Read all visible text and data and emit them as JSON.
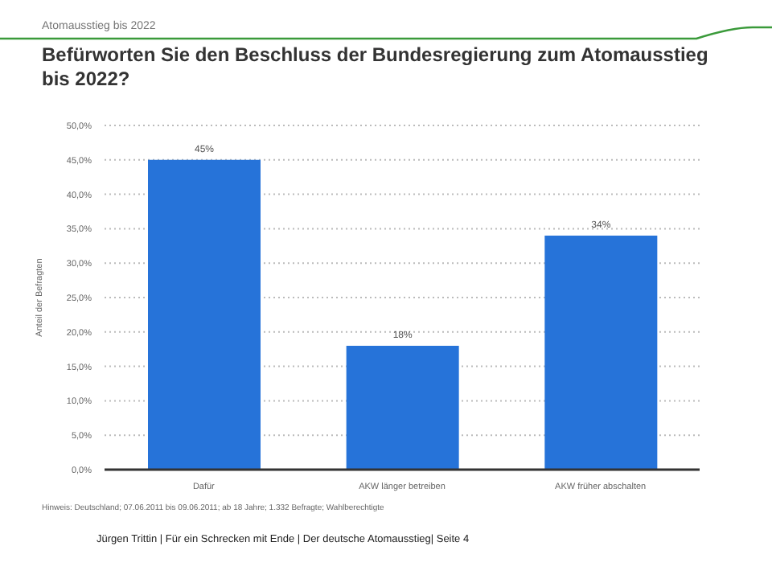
{
  "chart_data": {
    "type": "bar",
    "subtitle": "Atomausstieg bis 2022",
    "title": "Befürworten Sie den Beschluss der Bundesregierung zum Atomausstieg bis 2022?",
    "ylabel": "Anteil der Befragten",
    "categories": [
      "Dafür",
      "AKW länger betreiben",
      "AKW früher abschalten"
    ],
    "values": [
      45,
      18,
      34
    ],
    "color": "#2673d9",
    "value_labels": [
      "45%",
      "18%",
      "34%"
    ],
    "ylim": [
      0,
      50
    ],
    "yticks": [
      {
        "value": 0,
        "label": "0,0%"
      },
      {
        "value": 5,
        "label": "5,0%"
      },
      {
        "value": 10,
        "label": "10,0%"
      },
      {
        "value": 15,
        "label": "15,0%"
      },
      {
        "value": 20,
        "label": "20,0%"
      },
      {
        "value": 25,
        "label": "25,0%"
      },
      {
        "value": 30,
        "label": "30,0%"
      },
      {
        "value": 35,
        "label": "35,0%"
      },
      {
        "value": 40,
        "label": "40,0%"
      },
      {
        "value": 45,
        "label": "45,0%"
      },
      {
        "value": 50,
        "label": "50,0%"
      }
    ],
    "grid": "y",
    "legend": false,
    "annotations": [
      "Hinweis: Deutschland; 07.06.2011 bis 09.06.2011; ab 18 Jahre; 1.332 Befragte; Wahlberechtigte",
      "Jürgen Trittin | Für ein Schrecken mit Ende | Der deutsche Atomausstieg| Seite 4"
    ]
  }
}
